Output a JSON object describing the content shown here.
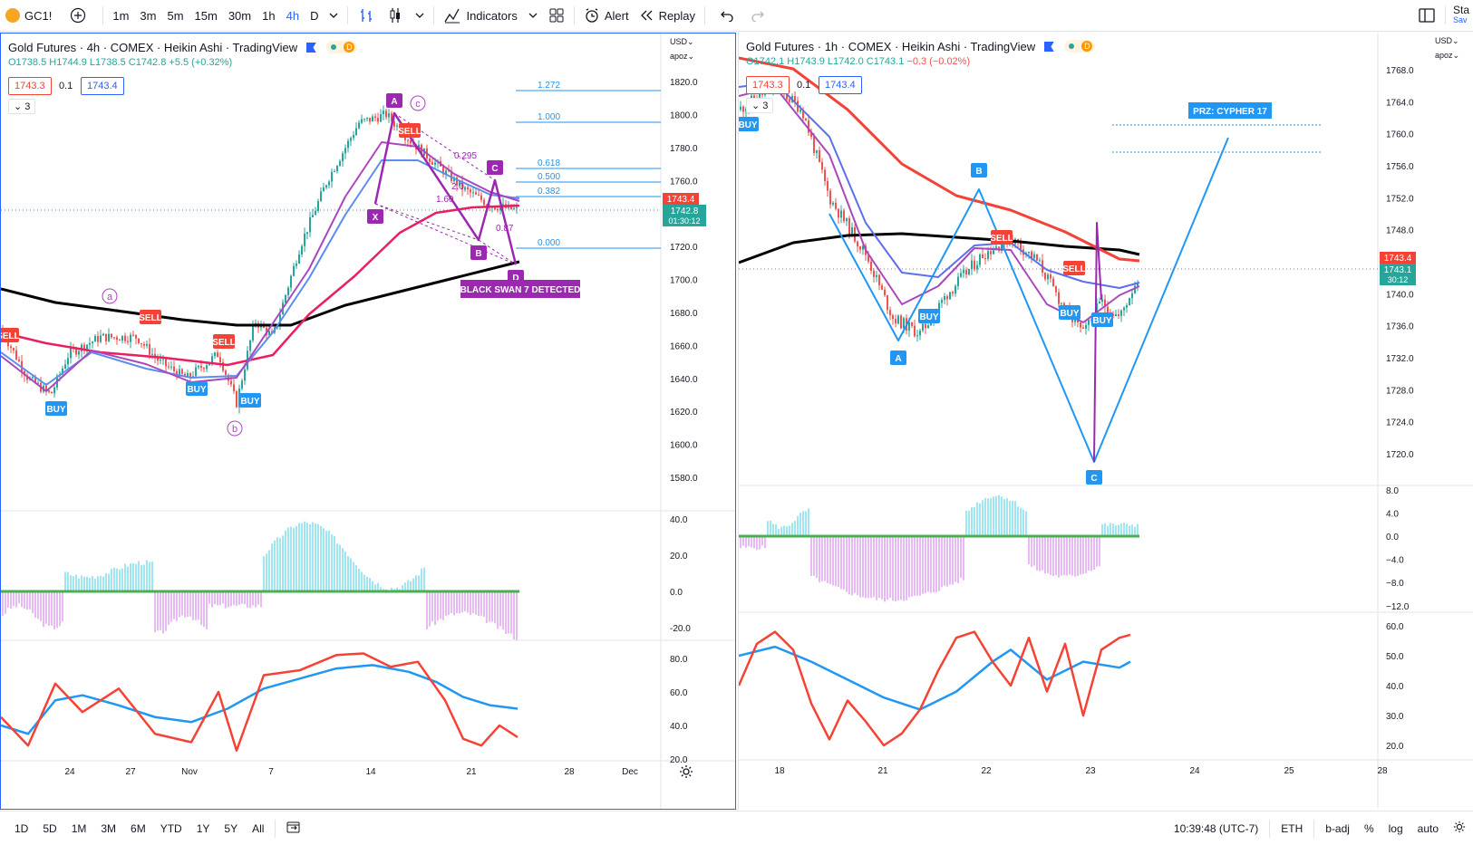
{
  "toolbar": {
    "symbol": "GC1!",
    "intervals": [
      "1m",
      "3m",
      "5m",
      "15m",
      "30m",
      "1h",
      "4h",
      "D"
    ],
    "active_interval": "4h",
    "indicators_label": "Indicators",
    "alert_label": "Alert",
    "replay_label": "Replay",
    "right_cut": "Sta",
    "right_cut_sub": "Sav"
  },
  "left_chart": {
    "title": "Gold Futures · 4h · COMEX · Heikin Ashi · TradingView",
    "ohlc": {
      "o": "O1738.5",
      "h": "H1744.9",
      "l": "L1738.5",
      "c": "C1742.8",
      "chg": "+5.5 (+0.32%)"
    },
    "bid": "1743.3",
    "spread": "0.1",
    "ask": "1743.4",
    "collapse": "3",
    "currency": "USD",
    "scale_mode": "apoz",
    "price_ticks": [
      "1820.0",
      "1800.0",
      "1780.0",
      "1760.0",
      "1740.0",
      "1720.0",
      "1700.0",
      "1680.0",
      "1660.0",
      "1640.0",
      "1620.0",
      "1600.0",
      "1580.0"
    ],
    "last_price": "1743.4",
    "current_price": "1742.8",
    "countdown": "01:30:12",
    "fib_levels": [
      "1.272",
      "1.000",
      "0.618",
      "0.500",
      "0.382",
      "0.000"
    ],
    "pattern_labels": [
      "X",
      "A",
      "B",
      "C",
      "D"
    ],
    "wave_labels": [
      "a",
      "b",
      "c"
    ],
    "ratios": [
      "0.295",
      "1.60",
      "2.0",
      "0.87"
    ],
    "signals": [
      "SELL",
      "SELL",
      "SELL",
      "SELL",
      "BUY",
      "BUY",
      "BUY"
    ],
    "detected_label": "BLACK SWAN 7 DETECTED",
    "osc_ticks": [
      "40.0",
      "20.0",
      "0.0",
      "-20.0"
    ],
    "rsi_ticks": [
      "80.0",
      "60.0",
      "40.0",
      "20.0"
    ],
    "date_ticks": [
      "24",
      "27",
      "Nov",
      "7",
      "14",
      "21",
      "28",
      "Dec"
    ]
  },
  "right_chart": {
    "title": "Gold Futures · 1h · COMEX · Heikin Ashi · TradingView",
    "ohlc": {
      "o": "O1742.1",
      "h": "H1743.9",
      "l": "L1742.0",
      "c": "C1743.1",
      "chg": "−0.3 (−0.02%)"
    },
    "bid": "1743.3",
    "spread": "0.1",
    "ask": "1743.4",
    "collapse": "3",
    "currency": "USD",
    "scale_mode": "apoz",
    "price_ticks": [
      "1768.0",
      "1764.0",
      "1760.0",
      "1756.0",
      "1752.0",
      "1748.0",
      "1744.0",
      "1740.0",
      "1736.0",
      "1732.0",
      "1728.0",
      "1724.0",
      "1720.0"
    ],
    "last_price": "1743.4",
    "current_price": "1743.1",
    "countdown": "30:12",
    "pattern_labels": [
      "A",
      "B",
      "C"
    ],
    "signals": [
      "SELL",
      "SELL",
      "BUY",
      "BUY",
      "BUY",
      "BUY"
    ],
    "prz_label": "PRZ: CYPHER 17",
    "osc_ticks": [
      "8.0",
      "4.0",
      "0.0",
      "−4.0",
      "−8.0",
      "−12.0"
    ],
    "rsi_ticks": [
      "60.0",
      "50.0",
      "40.0",
      "30.0",
      "20.0"
    ],
    "date_ticks": [
      "18",
      "21",
      "22",
      "23",
      "24",
      "25",
      "28"
    ]
  },
  "bottom": {
    "ranges": [
      "1D",
      "5D",
      "1M",
      "3M",
      "6M",
      "YTD",
      "1Y",
      "5Y",
      "All"
    ],
    "time": "10:39:48 (UTC-7)",
    "session": "ETH",
    "badj": "b-adj",
    "percent": "%",
    "log": "log",
    "auto": "auto"
  },
  "colors": {
    "accent": "#2962ff",
    "buy": "#2196f3",
    "sell": "#f44336",
    "pattern": "#9c27b0",
    "up": "#26a69a",
    "down": "#ef5350"
  }
}
